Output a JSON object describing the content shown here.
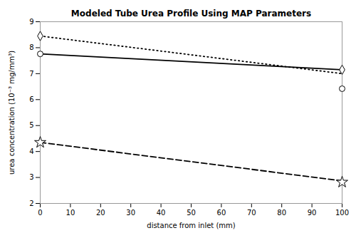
{
  "chart_data": {
    "type": "line",
    "title": "Modeled Tube Urea Profile Using MAP Parameters",
    "xlabel": "distance from inlet (mm)",
    "ylabel": "urea concentration (10⁻³ mg/mm³)",
    "xlim": [
      0,
      100
    ],
    "ylim": [
      2,
      9
    ],
    "xticks": [
      0,
      10,
      20,
      30,
      40,
      50,
      60,
      70,
      80,
      90,
      100
    ],
    "yticks": [
      2,
      3,
      4,
      5,
      6,
      7,
      8,
      9
    ],
    "grid": false,
    "series": [
      {
        "type": "line",
        "color": "black",
        "line_style": "solid",
        "x": [
          0,
          100
        ],
        "values": [
          7.76,
          7.15
        ]
      },
      {
        "type": "scatter",
        "color": "black",
        "marker": "circle",
        "x": [
          0,
          100
        ],
        "values": [
          7.76,
          6.42
        ]
      },
      {
        "type": "line",
        "color": "black",
        "line_style": "dashed",
        "x": [
          0,
          100
        ],
        "values": [
          4.35,
          2.87
        ]
      },
      {
        "type": "scatter",
        "color": "black",
        "marker": "star",
        "x": [
          0,
          100
        ],
        "values": [
          4.35,
          2.82
        ]
      },
      {
        "type": "line",
        "color": "black",
        "line_style": "dotted",
        "x": [
          0,
          100
        ],
        "values": [
          8.45,
          7.0
        ]
      },
      {
        "type": "scatter",
        "color": "black",
        "marker": "diamond",
        "x": [
          0,
          100
        ],
        "values": [
          8.45,
          7.15
        ]
      }
    ]
  }
}
